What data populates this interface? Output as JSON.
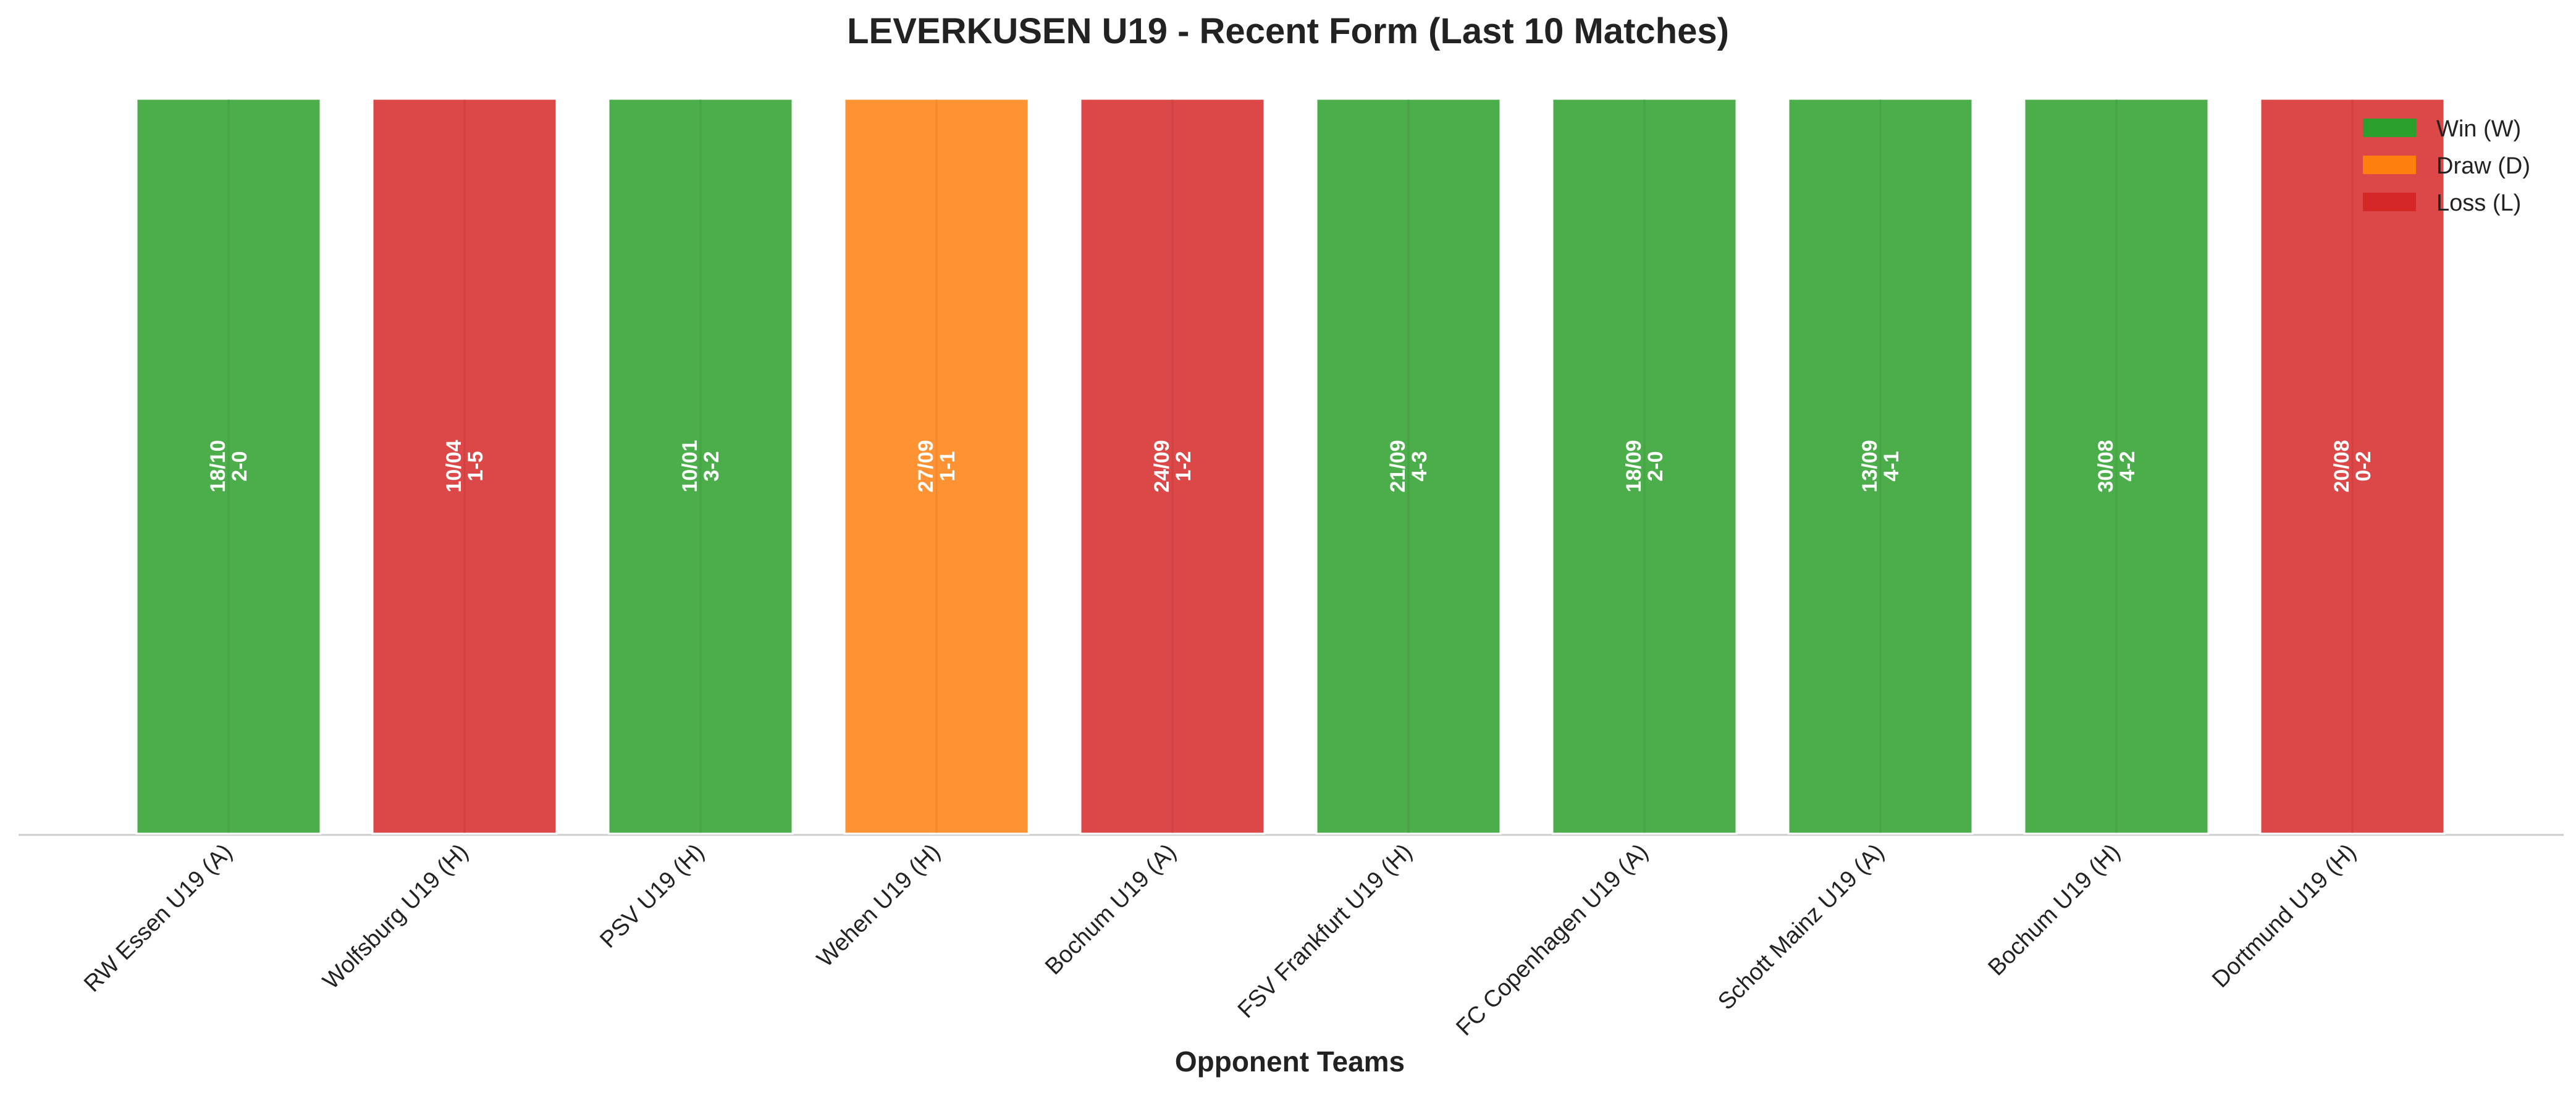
{
  "chart_data": {
    "type": "bar",
    "title": "LEVERKUSEN U19 - Recent Form (Last 10 Matches)",
    "xlabel": "Opponent Teams",
    "ylabel": "",
    "grid": false,
    "legend_position": "top-right",
    "legend": [
      {
        "key": "W",
        "label": "Win (W)",
        "color": "#2ca02c"
      },
      {
        "key": "D",
        "label": "Draw (D)",
        "color": "#ff7f0e"
      },
      {
        "key": "L",
        "label": "Loss (L)",
        "color": "#d62728"
      }
    ],
    "categories": [
      "RW Essen U19 (A)",
      "Wolfsburg U19 (H)",
      "PSV U19 (H)",
      "Wehen U19 (H)",
      "Bochum U19 (A)",
      "FSV Frankfurt U19 (H)",
      "FC Copenhagen U19 (A)",
      "Schott Mainz U19 (A)",
      "Bochum U19 (H)",
      "Dortmund U19 (H)"
    ],
    "results": [
      "W",
      "L",
      "W",
      "D",
      "L",
      "W",
      "W",
      "W",
      "W",
      "L"
    ],
    "values": [
      1,
      1,
      1,
      1,
      1,
      1,
      1,
      1,
      1,
      1
    ],
    "bar_labels": [
      {
        "date": "18/10",
        "score": "2-0"
      },
      {
        "date": "10/04",
        "score": "1-5"
      },
      {
        "date": "10/01",
        "score": "3-2"
      },
      {
        "date": "27/09",
        "score": "1-1"
      },
      {
        "date": "24/09",
        "score": "1-2"
      },
      {
        "date": "21/09",
        "score": "4-3"
      },
      {
        "date": "18/09",
        "score": "2-0"
      },
      {
        "date": "13/09",
        "score": "4-1"
      },
      {
        "date": "30/08",
        "score": "4-2"
      },
      {
        "date": "20/08",
        "score": "0-2"
      }
    ]
  }
}
